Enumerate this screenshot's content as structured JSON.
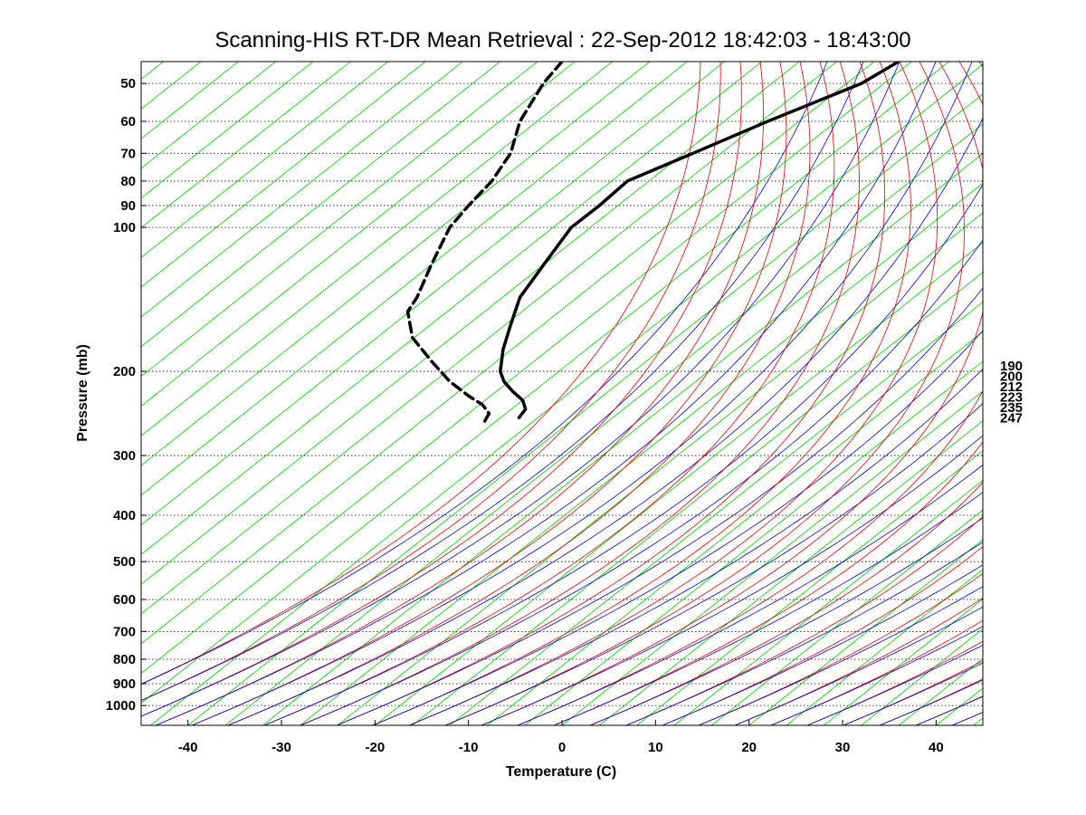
{
  "chart_data": {
    "type": "line",
    "subtype": "skew-T log-p thermodynamic diagram",
    "title": "Scanning-HIS RT-DR Mean Retrieval : 22-Sep-2012 18:42:03 - 18:43:00",
    "xlabel": "Temperature (C)",
    "ylabel": "Pressure (mb)",
    "xlim": [
      -45,
      45
    ],
    "ylim": [
      1100,
      45
    ],
    "y_scale": "log",
    "x_ticks": [
      -40,
      -30,
      -20,
      -10,
      0,
      10,
      20,
      30,
      40
    ],
    "x_tick_labels": [
      "-40",
      "-30",
      "-20",
      "-10",
      "0",
      "10",
      "20",
      "30",
      "40"
    ],
    "y_ticks": [
      50,
      60,
      70,
      80,
      90,
      100,
      200,
      300,
      400,
      500,
      600,
      700,
      800,
      900,
      1000
    ],
    "y_tick_labels": [
      "50",
      "60",
      "70",
      "80",
      "90",
      "100",
      "200",
      "300",
      "400",
      "500",
      "600",
      "700",
      "800",
      "900",
      "1000"
    ],
    "grid": "dotted horizontal lines at pressure ticks",
    "right_labels": [
      "190",
      "200",
      "212",
      "223",
      "235",
      "247"
    ],
    "series": [
      {
        "style": "solid",
        "color": "#000000",
        "x": [
          36,
          32,
          22,
          14,
          7,
          4,
          1,
          -2,
          -4.5,
          -5.5,
          -6.3,
          -6.6,
          -6.2,
          -5.3,
          -4.2,
          -3.9,
          -4.6
        ],
        "y": [
          45,
          50,
          60,
          70,
          80,
          90,
          100,
          120,
          140,
          160,
          180,
          200,
          210,
          220,
          230,
          240,
          250
        ]
      },
      {
        "style": "dashed",
        "color": "#000000",
        "x": [
          0,
          -2,
          -4.5,
          -5.5,
          -7.5,
          -10,
          -12,
          -14,
          -15.5,
          -16.5,
          -16,
          -14,
          -12,
          -10,
          -8.5,
          -7.8,
          -8.3
        ],
        "y": [
          45,
          50,
          60,
          70,
          80,
          90,
          100,
          120,
          140,
          150,
          170,
          190,
          210,
          225,
          235,
          245,
          255
        ]
      }
    ],
    "background_curves": {
      "green": "isotherms (skewed)",
      "red": "dry adiabats",
      "blue": "isohumes / moist curves"
    },
    "colors": {
      "isotherm": "#00cc00",
      "dry_adiabat": "#dd0000",
      "moist": "#0000cc",
      "profile": "#000000",
      "grid": "#000000"
    }
  }
}
